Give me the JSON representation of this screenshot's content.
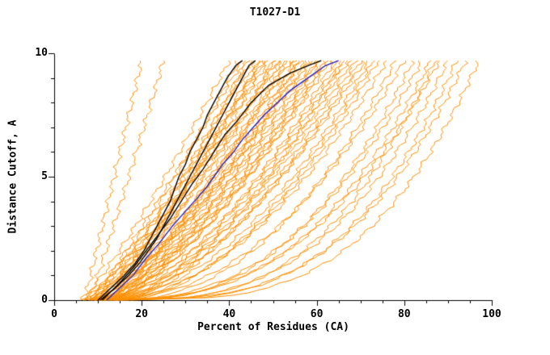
{
  "chart_data": {
    "type": "line",
    "title": "T1027-D1",
    "xlabel": "Percent of Residues (CA)",
    "ylabel": "Distance Cutoff, A",
    "xlim": [
      0,
      100
    ],
    "ylim": [
      0,
      10
    ],
    "x_major_ticks": [
      0,
      20,
      40,
      60,
      80,
      100
    ],
    "x_minor_step": 5,
    "y_major_ticks": [
      0,
      5,
      10
    ],
    "y_minor_step": 1,
    "grid": false,
    "legend": "none",
    "y_top": 9.7,
    "colors": {
      "swarm": "#FF8F00",
      "highlight": "#000000",
      "reference": "#2222CC",
      "axis": "#000000",
      "background": "#FFFFFF"
    },
    "swarm_curves": [
      [
        7,
        20,
        1.0
      ],
      [
        8,
        25,
        0.95
      ],
      [
        6,
        40,
        0.85
      ],
      [
        7,
        42,
        0.8
      ],
      [
        8,
        43,
        0.9
      ],
      [
        6,
        44,
        0.75
      ],
      [
        9,
        45,
        0.85
      ],
      [
        7,
        46,
        0.7
      ],
      [
        10,
        47,
        0.8
      ],
      [
        8,
        48,
        0.9
      ],
      [
        11,
        48,
        0.75
      ],
      [
        9,
        49,
        0.85
      ],
      [
        7,
        50,
        0.7
      ],
      [
        10,
        51,
        0.8
      ],
      [
        12,
        52,
        0.75
      ],
      [
        8,
        52,
        0.9
      ],
      [
        9,
        53,
        0.7
      ],
      [
        11,
        54,
        0.8
      ],
      [
        10,
        55,
        0.65
      ],
      [
        12,
        55,
        0.75
      ],
      [
        8,
        56,
        0.7
      ],
      [
        13,
        57,
        0.8
      ],
      [
        9,
        58,
        0.65
      ],
      [
        11,
        59,
        0.7
      ],
      [
        14,
        60,
        0.75
      ],
      [
        10,
        60,
        0.6
      ],
      [
        12,
        61,
        0.7
      ],
      [
        9,
        62,
        0.65
      ],
      [
        13,
        63,
        0.7
      ],
      [
        11,
        64,
        0.6
      ],
      [
        10,
        65,
        0.6
      ],
      [
        14,
        66,
        0.65
      ],
      [
        12,
        67,
        0.6
      ],
      [
        9,
        68,
        0.55
      ],
      [
        15,
        69,
        0.6
      ],
      [
        11,
        70,
        0.55
      ],
      [
        13,
        71,
        0.6
      ],
      [
        10,
        72,
        0.5
      ],
      [
        16,
        73,
        0.55
      ],
      [
        12,
        74,
        0.5
      ],
      [
        11,
        76,
        0.5
      ],
      [
        14,
        78,
        0.45
      ],
      [
        10,
        80,
        0.45
      ],
      [
        15,
        82,
        0.4
      ],
      [
        12,
        84,
        0.4
      ],
      [
        13,
        86,
        0.38
      ],
      [
        16,
        87,
        0.35
      ],
      [
        11,
        88,
        0.38
      ],
      [
        14,
        90,
        0.35
      ],
      [
        17,
        92,
        0.33
      ],
      [
        13,
        94,
        0.32
      ],
      [
        15,
        97,
        0.3
      ],
      [
        8,
        44,
        0.72
      ],
      [
        9,
        47,
        0.78
      ],
      [
        10,
        50,
        0.68
      ],
      [
        11,
        53,
        0.73
      ],
      [
        12,
        56,
        0.66
      ],
      [
        9,
        58,
        0.74
      ],
      [
        10,
        62,
        0.62
      ],
      [
        13,
        66,
        0.58
      ]
    ],
    "highlight_series": [
      {
        "name": "black-curve-1",
        "color": "#000000",
        "width": 1.4,
        "points": [
          [
            10,
            0
          ],
          [
            13,
            0.5
          ],
          [
            16,
            1
          ],
          [
            18.5,
            1.5
          ],
          [
            20.5,
            2
          ],
          [
            22,
            2.5
          ],
          [
            23.5,
            3
          ],
          [
            25,
            3.5
          ],
          [
            26.5,
            4
          ],
          [
            27.5,
            4.5
          ],
          [
            28.5,
            5
          ],
          [
            30,
            5.5
          ],
          [
            31,
            6
          ],
          [
            32.5,
            6.5
          ],
          [
            34,
            7
          ],
          [
            35,
            7.5
          ],
          [
            36.5,
            8
          ],
          [
            38,
            8.5
          ],
          [
            39.5,
            9
          ],
          [
            41.5,
            9.5
          ],
          [
            43,
            9.7
          ]
        ]
      },
      {
        "name": "black-curve-2",
        "color": "#000000",
        "width": 1.4,
        "points": [
          [
            10.5,
            0
          ],
          [
            14,
            0.5
          ],
          [
            17,
            1
          ],
          [
            19.5,
            1.5
          ],
          [
            21.5,
            2
          ],
          [
            23.5,
            2.5
          ],
          [
            25,
            3
          ],
          [
            26.5,
            3.5
          ],
          [
            28,
            4
          ],
          [
            29.5,
            4.5
          ],
          [
            31,
            5
          ],
          [
            32.5,
            5.5
          ],
          [
            34,
            6
          ],
          [
            35.5,
            6.5
          ],
          [
            37,
            7
          ],
          [
            38.5,
            7.5
          ],
          [
            40,
            8
          ],
          [
            41.5,
            8.5
          ],
          [
            43,
            9
          ],
          [
            44.5,
            9.5
          ],
          [
            46,
            9.7
          ]
        ]
      },
      {
        "name": "black-curve-3",
        "color": "#000000",
        "width": 1.4,
        "points": [
          [
            11,
            0
          ],
          [
            15,
            0.7
          ],
          [
            18,
            1.3
          ],
          [
            21,
            2
          ],
          [
            24,
            2.7
          ],
          [
            26.5,
            3.3
          ],
          [
            29,
            4
          ],
          [
            31.5,
            4.7
          ],
          [
            34,
            5.3
          ],
          [
            36.5,
            6
          ],
          [
            39,
            6.7
          ],
          [
            42,
            7.3
          ],
          [
            45,
            8
          ],
          [
            49,
            8.7
          ],
          [
            54,
            9.2
          ],
          [
            58,
            9.5
          ],
          [
            61,
            9.7
          ]
        ]
      },
      {
        "name": "blue-curve",
        "color": "#2222CC",
        "width": 1.4,
        "points": [
          [
            12,
            0
          ],
          [
            15,
            0.5
          ],
          [
            18,
            1
          ],
          [
            21,
            1.7
          ],
          [
            24,
            2.3
          ],
          [
            27,
            3
          ],
          [
            29.5,
            3.5
          ],
          [
            32,
            4
          ],
          [
            34.5,
            4.5
          ],
          [
            36.5,
            5
          ],
          [
            38.5,
            5.5
          ],
          [
            41,
            6
          ],
          [
            43,
            6.5
          ],
          [
            45.5,
            7
          ],
          [
            48,
            7.5
          ],
          [
            51,
            8
          ],
          [
            54,
            8.5
          ],
          [
            58,
            9
          ],
          [
            62,
            9.5
          ],
          [
            65,
            9.7
          ]
        ]
      }
    ]
  }
}
